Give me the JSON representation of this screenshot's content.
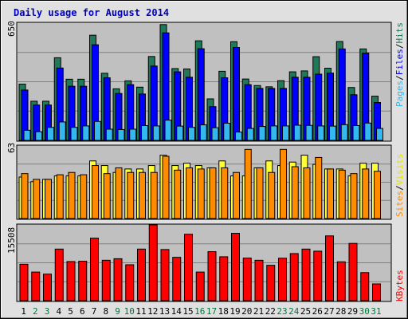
{
  "title": "Daily usage for August 2014",
  "colors": {
    "hits": "#1f7a58",
    "files": "#0000ff",
    "pages": "#33b8f0",
    "visits": "#ffff33",
    "sites": "#ff8c00",
    "kbytes": "#ff0000",
    "weekday_label": "#000000",
    "weekend_label": "#007a3d",
    "panel_bg": "#c0c0c0",
    "frame_bg": "#e0e0e0"
  },
  "chart_data": {
    "type": "bar",
    "x_labels": [
      "1",
      "2",
      "3",
      "4",
      "5",
      "6",
      "7",
      "8",
      "9",
      "10",
      "11",
      "12",
      "13",
      "14",
      "15",
      "16",
      "17",
      "18",
      "19",
      "20",
      "21",
      "22",
      "23",
      "24",
      "25",
      "26",
      "27",
      "28",
      "29",
      "30",
      "31"
    ],
    "weekend_days": [
      "2",
      "3",
      "9",
      "10",
      "16",
      "17",
      "23",
      "24",
      "30",
      "31"
    ],
    "panels": [
      {
        "name": "usage",
        "axis_max_label": "650",
        "ymax": 650,
        "side_label_parts": [
          "Pages",
          "/",
          "Files",
          "/",
          "Hits"
        ],
        "series": [
          {
            "name": "Hits",
            "values": [
              312,
              217,
              217,
              458,
              339,
              339,
              583,
              372,
              286,
              330,
              295,
              465,
              642,
              398,
              396,
              552,
              230,
              383,
              547,
              340,
              304,
              297,
              331,
              380,
              385,
              464,
              400,
              548,
              293,
              507,
              245
            ]
          },
          {
            "name": "Files",
            "values": [
              279,
              196,
              196,
              401,
              300,
              300,
              530,
              347,
              260,
              309,
              257,
              412,
              596,
              380,
              350,
              508,
              187,
              347,
              515,
              309,
              288,
              288,
              288,
              350,
              350,
              367,
              373,
              507,
              253,
              484,
              210
            ]
          },
          {
            "name": "Pages",
            "values": [
              56,
              48,
              72,
              102,
              72,
              80,
              105,
              62,
              60,
              62,
              82,
              80,
              112,
              79,
              72,
              86,
              70,
              95,
              46,
              66,
              77,
              80,
              80,
              84,
              83,
              80,
              79,
              87,
              82,
              96,
              66
            ]
          }
        ]
      },
      {
        "name": "sites_visits",
        "axis_max_label": "63",
        "ymax": 63,
        "side_label_parts": [
          "Sites",
          "/",
          "Visits"
        ],
        "series": [
          {
            "name": "Visits",
            "values": [
              36,
              32,
              34,
              37,
              37,
              37,
              50,
              46,
              40,
              43,
              43,
              46,
              55,
              46,
              48,
              46,
              44,
              50,
              37,
              37,
              44,
              50,
              46,
              49,
              55,
              47,
              43,
              43,
              37,
              48,
              48
            ]
          },
          {
            "name": "Sites",
            "values": [
              39,
              34,
              34,
              38,
              40,
              38,
              46,
              39,
              44,
              40,
              40,
              40,
              54,
              42,
              44,
              43,
              44,
              44,
              40,
              60,
              44,
              40,
              60,
              45,
              44,
              53,
              43,
              42,
              39,
              43,
              41
            ]
          }
        ]
      },
      {
        "name": "kbytes",
        "axis_max_label": "15508",
        "ymax": 15508,
        "side_label_parts": [
          "KBytes"
        ],
        "series": [
          {
            "name": "KBytes",
            "values": [
              7452,
              5858,
              5432,
              10560,
              8008,
              8072,
              12796,
              8270,
              8585,
              7350,
              10560,
              15508,
              10470,
              8870,
              13592,
              5858,
              10030,
              8990,
              13789,
              8715,
              8270,
              7240,
              8690,
              9640,
              10560,
              10130,
              13260,
              7952,
              11720,
              5750,
              3430
            ]
          }
        ]
      }
    ]
  }
}
